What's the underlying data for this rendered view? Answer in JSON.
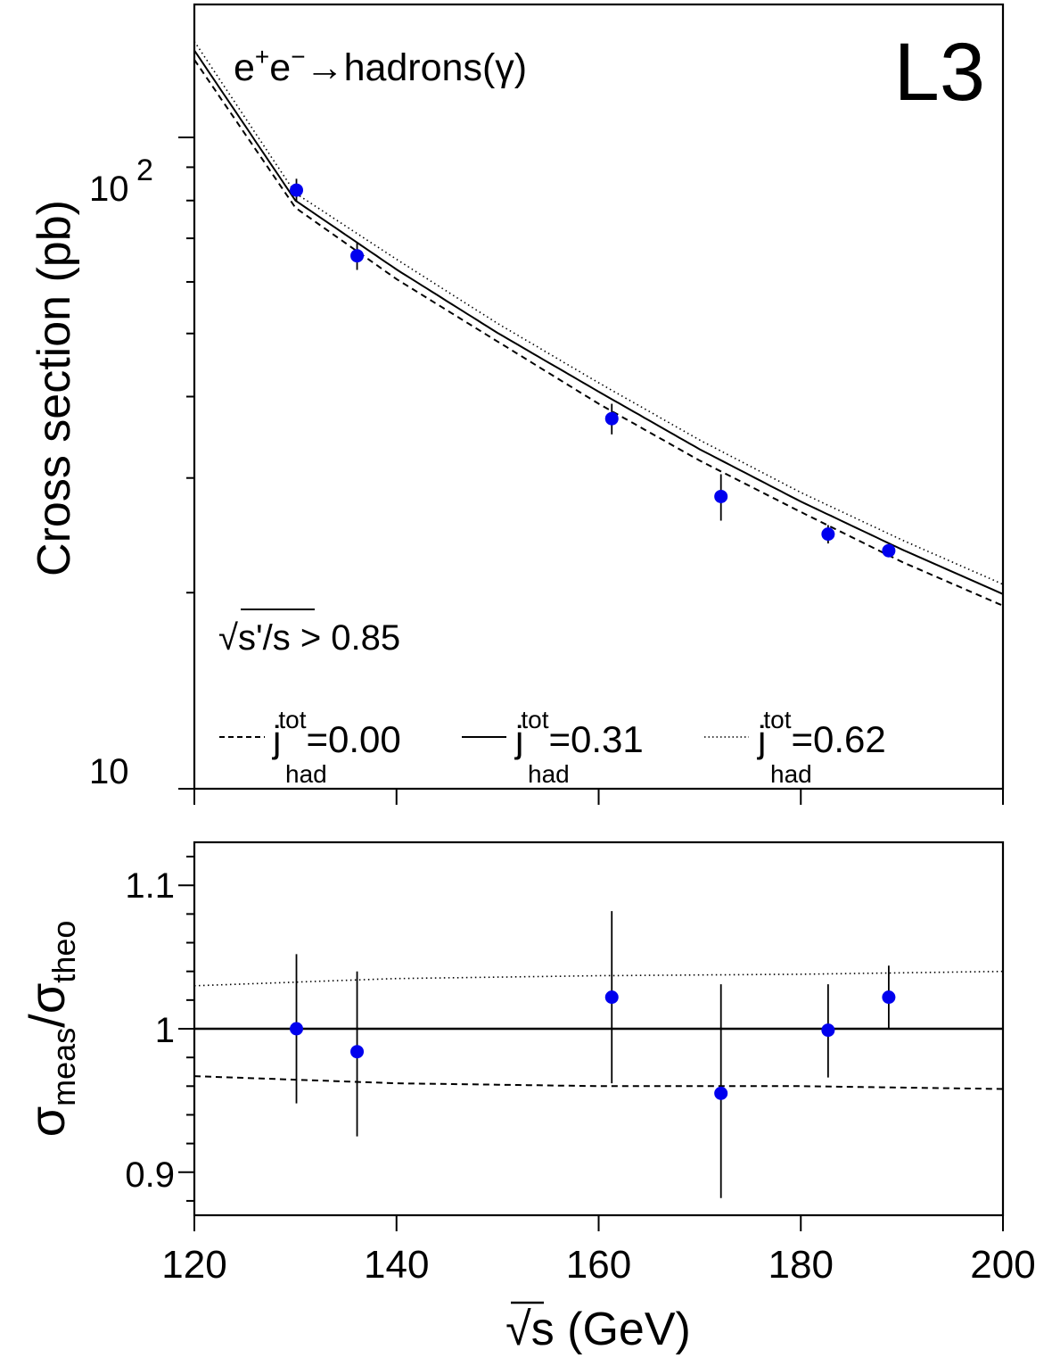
{
  "chart_data": [
    {
      "type": "line",
      "panel": "top",
      "title_label": "L3",
      "process": {
        "lead": "e",
        "sup1": "+",
        "mid": "e",
        "sup2": "−",
        "tail": "→hadrons(γ)"
      },
      "ylabel": "Cross section (pb)",
      "y_scale": "log",
      "ylim": [
        10,
        160
      ],
      "xlim": [
        120,
        200
      ],
      "y_ticks": [
        {
          "value": 10,
          "base": "10",
          "exp": ""
        },
        {
          "value": 100,
          "base": "10",
          "exp": "2"
        }
      ],
      "cut_label": {
        "sqrt": "√",
        "expr": "s'/s",
        "rest": " > 0.85"
      },
      "legend_placement": "bottom",
      "series": [
        {
          "name": "j_had^tot=0.00",
          "label_main": "j",
          "label_sup": "tot",
          "label_sub": "had",
          "label_value": "=0.00",
          "style": "dashed",
          "x": [
            120,
            130,
            140,
            150,
            160,
            170,
            180,
            190,
            200
          ],
          "y": [
            131.6,
            78.0,
            60.6,
            48.6,
            39.0,
            31.9,
            26.6,
            22.3,
            19.1
          ]
        },
        {
          "name": "j_had^tot=0.31",
          "label_main": "j",
          "label_sup": "tot",
          "label_sub": "had",
          "label_value": "=0.31",
          "style": "solid",
          "x": [
            120,
            130,
            140,
            150,
            160,
            170,
            180,
            190,
            200
          ],
          "y": [
            136.0,
            80.0,
            62.7,
            50.1,
            40.7,
            33.2,
            27.6,
            23.3,
            19.9
          ]
        },
        {
          "name": "j_had^tot=0.62",
          "label_main": "j",
          "label_sup": "tot",
          "label_sub": "had",
          "label_value": "=0.62",
          "style": "dotted",
          "x": [
            120,
            130,
            140,
            150,
            160,
            170,
            180,
            190,
            200
          ],
          "y": [
            140.4,
            82.1,
            65.0,
            51.8,
            42.0,
            34.3,
            28.5,
            24.1,
            20.6
          ]
        },
        {
          "name": "data",
          "style": "points",
          "color": "#0000ee",
          "x": [
            130.1,
            136.1,
            161.3,
            172.1,
            182.7,
            188.7
          ],
          "y": [
            83.0,
            65.8,
            37.0,
            28.1,
            24.6,
            23.2
          ],
          "yerr_low": [
            3.4,
            3.2,
            2.0,
            2.3,
            0.8,
            0.5
          ],
          "yerr_high": [
            3.4,
            3.2,
            2.0,
            2.3,
            0.8,
            0.5
          ]
        }
      ]
    },
    {
      "type": "scatter",
      "panel": "bottom",
      "ylabel": {
        "sym1": "σ",
        "sub1": "meas",
        "slash": "/",
        "sym2": "σ",
        "sub2": "theo"
      },
      "xlabel": {
        "sqrt": "√",
        "expr": "s",
        "rest": " (GeV)"
      },
      "xlim": [
        120,
        200
      ],
      "ylim": [
        0.87,
        1.13
      ],
      "x_ticks": [
        "120",
        "140",
        "160",
        "180",
        "200"
      ],
      "y_ticks": [
        "0.9",
        "1",
        "1.1"
      ],
      "series": [
        {
          "name": "dotted ratio",
          "style": "dotted",
          "x": [
            120,
            140,
            160,
            180,
            200
          ],
          "y": [
            1.03,
            1.035,
            1.037,
            1.038,
            1.04
          ]
        },
        {
          "name": "solid ratio",
          "style": "solid",
          "x": [
            120,
            200
          ],
          "y": [
            1.0,
            1.0
          ]
        },
        {
          "name": "dashed ratio",
          "style": "dashed",
          "x": [
            120,
            140,
            160,
            180,
            200
          ],
          "y": [
            0.967,
            0.962,
            0.96,
            0.96,
            0.958
          ]
        },
        {
          "name": "data",
          "style": "points",
          "color": "#0000ee",
          "x": [
            130.1,
            136.1,
            161.3,
            172.1,
            182.7,
            188.7
          ],
          "y": [
            1.0,
            0.984,
            1.022,
            0.955,
            0.999,
            1.022
          ],
          "yerr_low": [
            0.052,
            0.059,
            0.06,
            0.073,
            0.033,
            0.022
          ],
          "yerr_high": [
            0.052,
            0.056,
            0.06,
            0.076,
            0.032,
            0.022
          ]
        }
      ]
    }
  ]
}
